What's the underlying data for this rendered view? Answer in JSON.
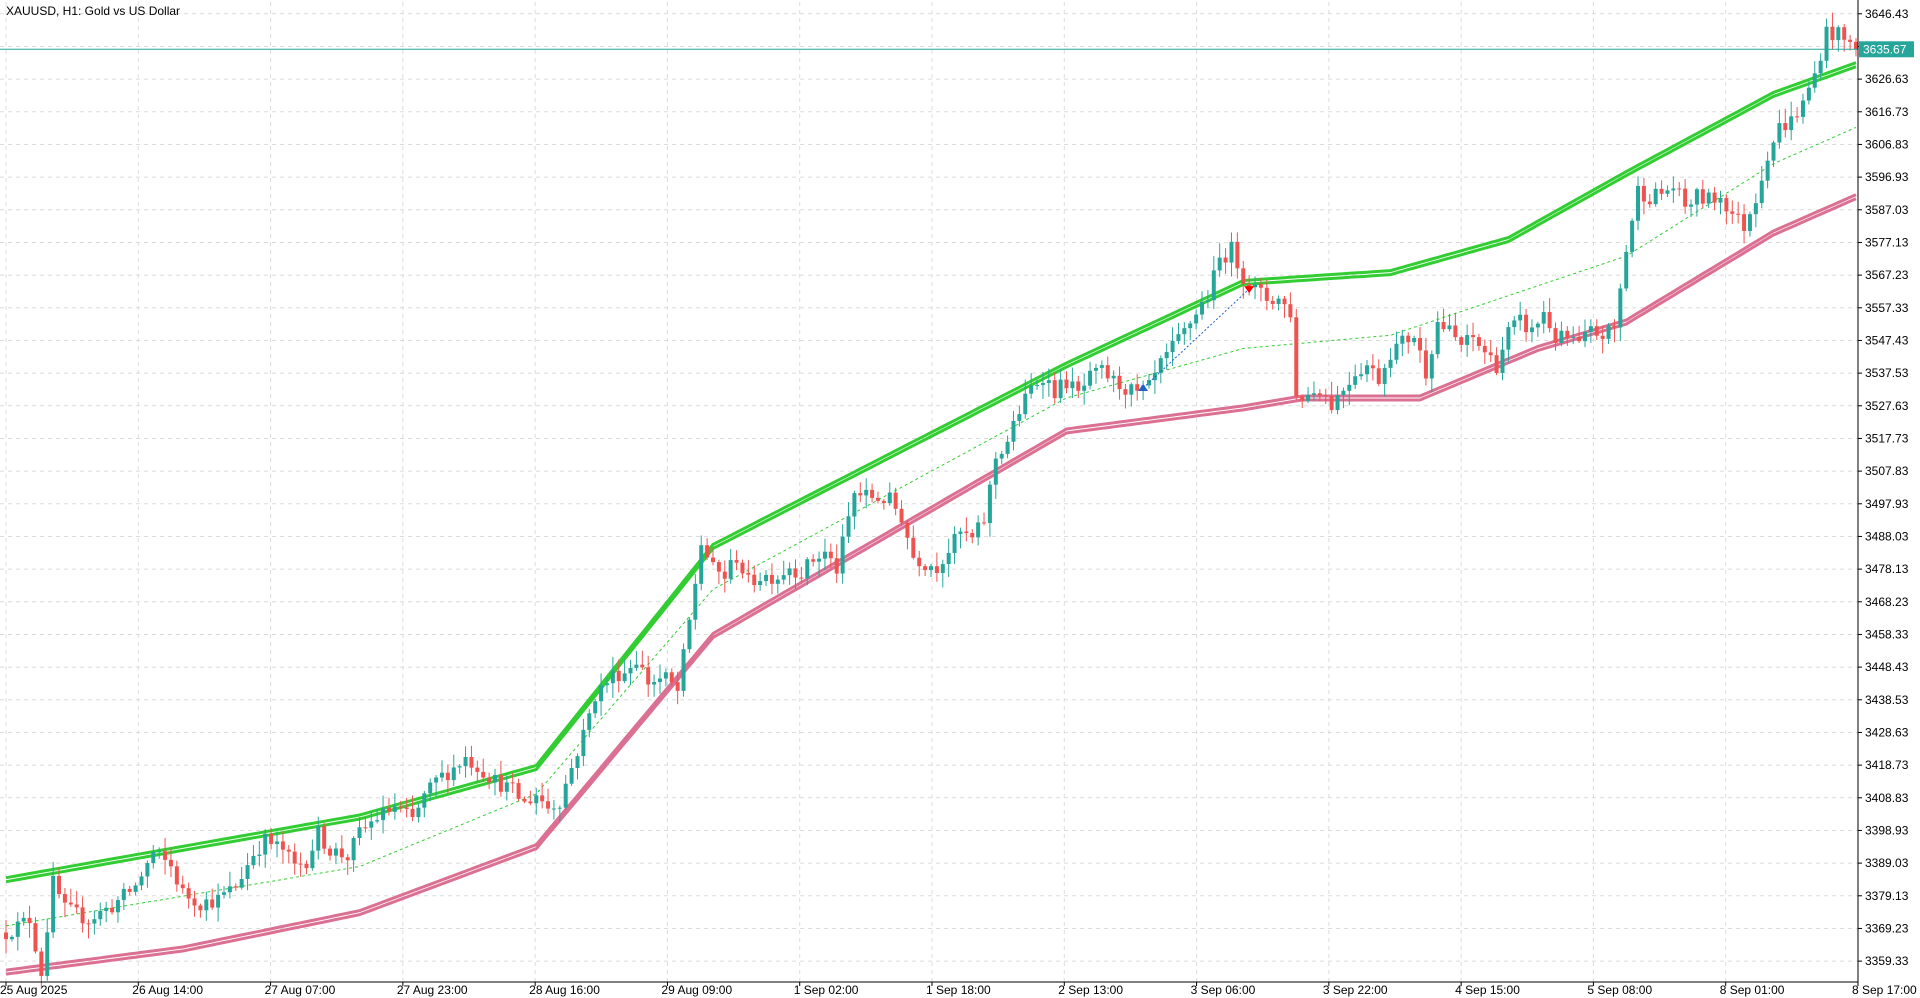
{
  "header": {
    "symbol_label": "XAUUSD, H1:  Gold vs US Dollar"
  },
  "colors": {
    "background": "#ffffff",
    "axis": "#000000",
    "grid": "#dcdcdc",
    "bull_candle": "#26a69a",
    "bear_candle": "#ef5350",
    "upper_band": "#32cd32",
    "lower_band": "#db7093",
    "middle_line": "#32cd32",
    "current_price_line": "#26a69a",
    "buy_arrow": "#1e64c8",
    "sell_arrow": "#ff0000"
  },
  "chart_data": {
    "type": "candlestick",
    "symbol": "XAUUSD",
    "timeframe": "H1",
    "description": "Gold vs US Dollar",
    "current_price": 3635.67,
    "current_price_label": "3635.67",
    "ylim": [
      3353.0,
      3650.0
    ],
    "grid": true,
    "y_ticks": [
      "3646.43",
      "3636.53",
      "3626.63",
      "3616.73",
      "3606.83",
      "3596.93",
      "3587.03",
      "3577.13",
      "3567.23",
      "3557.33",
      "3547.43",
      "3537.53",
      "3527.63",
      "3517.73",
      "3507.83",
      "3497.93",
      "3488.03",
      "3478.13",
      "3468.23",
      "3458.33",
      "3448.43",
      "3438.53",
      "3428.63",
      "3418.73",
      "3408.83",
      "3398.93",
      "3389.03",
      "3379.13",
      "3369.23",
      "3359.33"
    ],
    "x_ticks": [
      "25 Aug 2025",
      "26 Aug 14:00",
      "27 Aug 07:00",
      "27 Aug 23:00",
      "28 Aug 16:00",
      "29 Aug 09:00",
      "1 Sep 02:00",
      "1 Sep 18:00",
      "2 Sep 13:00",
      "3 Sep 06:00",
      "3 Sep 22:00",
      "4 Sep 15:00",
      "5 Sep 08:00",
      "8 Sep 01:00",
      "8 Sep 17:00"
    ],
    "price_path": [
      [
        0,
        3368
      ],
      [
        4,
        3372
      ],
      [
        6,
        3356
      ],
      [
        8,
        3383
      ],
      [
        10,
        3375
      ],
      [
        14,
        3372
      ],
      [
        18,
        3376
      ],
      [
        22,
        3382
      ],
      [
        25,
        3392
      ],
      [
        28,
        3388
      ],
      [
        30,
        3380
      ],
      [
        33,
        3377
      ],
      [
        36,
        3378
      ],
      [
        39,
        3382
      ],
      [
        42,
        3392
      ],
      [
        44,
        3396
      ],
      [
        47,
        3393
      ],
      [
        49,
        3388
      ],
      [
        51,
        3390
      ],
      [
        53,
        3398
      ],
      [
        55,
        3393
      ],
      [
        58,
        3391
      ],
      [
        60,
        3398
      ],
      [
        63,
        3403
      ],
      [
        66,
        3406
      ],
      [
        69,
        3402
      ],
      [
        71,
        3409
      ],
      [
        73,
        3414
      ],
      [
        76,
        3418
      ],
      [
        78,
        3421
      ],
      [
        81,
        3417
      ],
      [
        83,
        3414
      ],
      [
        86,
        3411
      ],
      [
        88,
        3407
      ],
      [
        90,
        3410
      ],
      [
        92,
        3406
      ],
      [
        94,
        3408
      ],
      [
        96,
        3418
      ],
      [
        98,
        3428
      ],
      [
        100,
        3440
      ],
      [
        103,
        3446
      ],
      [
        105,
        3447
      ],
      [
        107,
        3451
      ],
      [
        109,
        3444
      ],
      [
        112,
        3445
      ],
      [
        114,
        3441
      ],
      [
        116,
        3462
      ],
      [
        118,
        3486
      ],
      [
        120,
        3478
      ],
      [
        122,
        3476
      ],
      [
        124,
        3482
      ],
      [
        126,
        3474
      ],
      [
        128,
        3476
      ],
      [
        131,
        3476
      ],
      [
        133,
        3479
      ],
      [
        135,
        3477
      ],
      [
        137,
        3481
      ],
      [
        139,
        3483
      ],
      [
        141,
        3478
      ],
      [
        144,
        3501
      ],
      [
        147,
        3500
      ],
      [
        150,
        3499
      ],
      [
        152,
        3494
      ],
      [
        154,
        3482
      ],
      [
        156,
        3480
      ],
      [
        158,
        3479
      ],
      [
        160,
        3484
      ],
      [
        162,
        3489
      ],
      [
        164,
        3487
      ],
      [
        166,
        3493
      ],
      [
        168,
        3512
      ],
      [
        170,
        3517
      ],
      [
        172,
        3526
      ],
      [
        174,
        3533
      ],
      [
        176,
        3537
      ],
      [
        178,
        3532
      ],
      [
        180,
        3535
      ],
      [
        182,
        3531
      ],
      [
        184,
        3536
      ],
      [
        186,
        3538
      ],
      [
        188,
        3535
      ],
      [
        190,
        3533
      ],
      [
        192,
        3531
      ],
      [
        194,
        3533
      ],
      [
        196,
        3540
      ],
      [
        198,
        3545
      ],
      [
        200,
        3550
      ],
      [
        202,
        3556
      ],
      [
        204,
        3561
      ],
      [
        206,
        3572
      ],
      [
        208,
        3575
      ],
      [
        210,
        3567
      ],
      [
        212,
        3563
      ],
      [
        214,
        3560
      ],
      [
        216,
        3560
      ],
      [
        218,
        3556
      ],
      [
        219,
        3530
      ],
      [
        221,
        3531
      ],
      [
        223,
        3533
      ],
      [
        225,
        3528
      ],
      [
        227,
        3533
      ],
      [
        229,
        3538
      ],
      [
        231,
        3540
      ],
      [
        233,
        3536
      ],
      [
        235,
        3544
      ],
      [
        237,
        3547
      ],
      [
        239,
        3549
      ],
      [
        241,
        3538
      ],
      [
        243,
        3553
      ],
      [
        245,
        3550
      ],
      [
        247,
        3546
      ],
      [
        249,
        3548
      ],
      [
        251,
        3544
      ],
      [
        253,
        3540
      ],
      [
        255,
        3550
      ],
      [
        257,
        3553
      ],
      [
        259,
        3550
      ],
      [
        261,
        3556
      ],
      [
        263,
        3548
      ],
      [
        265,
        3548
      ],
      [
        267,
        3546
      ],
      [
        269,
        3550
      ],
      [
        271,
        3549
      ],
      [
        273,
        3551
      ],
      [
        275,
        3575
      ],
      [
        277,
        3593
      ],
      [
        279,
        3591
      ],
      [
        281,
        3592
      ],
      [
        283,
        3594
      ],
      [
        285,
        3588
      ],
      [
        287,
        3591
      ],
      [
        289,
        3590
      ],
      [
        291,
        3591
      ],
      [
        293,
        3586
      ],
      [
        295,
        3582
      ],
      [
        297,
        3591
      ],
      [
        299,
        3604
      ],
      [
        301,
        3612
      ],
      [
        303,
        3614
      ],
      [
        305,
        3619
      ],
      [
        307,
        3628
      ],
      [
        309,
        3641
      ],
      [
        311,
        3640
      ],
      [
        313,
        3637
      ],
      [
        314,
        3635.67
      ]
    ],
    "bands": {
      "count": 315,
      "upper": [
        [
          0,
          3384
        ],
        [
          60,
          3403
        ],
        [
          90,
          3418
        ],
        [
          120,
          3485
        ],
        [
          180,
          3540
        ],
        [
          210,
          3565
        ],
        [
          235,
          3568
        ],
        [
          255,
          3578
        ],
        [
          275,
          3598
        ],
        [
          300,
          3622
        ],
        [
          314,
          3631
        ]
      ],
      "middle": [
        [
          0,
          3370
        ],
        [
          60,
          3388
        ],
        [
          90,
          3410
        ],
        [
          120,
          3472
        ],
        [
          180,
          3530
        ],
        [
          210,
          3545
        ],
        [
          235,
          3549
        ],
        [
          255,
          3561
        ],
        [
          275,
          3573
        ],
        [
          300,
          3601
        ],
        [
          314,
          3612
        ]
      ],
      "lower": [
        [
          0,
          3356
        ],
        [
          30,
          3363
        ],
        [
          60,
          3374
        ],
        [
          90,
          3394
        ],
        [
          120,
          3458
        ],
        [
          180,
          3520
        ],
        [
          210,
          3527
        ],
        [
          220,
          3530
        ],
        [
          240,
          3530
        ],
        [
          260,
          3545
        ],
        [
          275,
          3553
        ],
        [
          300,
          3580
        ],
        [
          314,
          3591
        ]
      ]
    },
    "signals": [
      {
        "type": "buy",
        "bar": 193,
        "price": 3533
      },
      {
        "type": "sell",
        "bar": 211,
        "price": 3563
      }
    ],
    "signal_link": {
      "from_bar": 193,
      "from_price": 3533,
      "to_bar": 211,
      "to_price": 3563
    }
  }
}
